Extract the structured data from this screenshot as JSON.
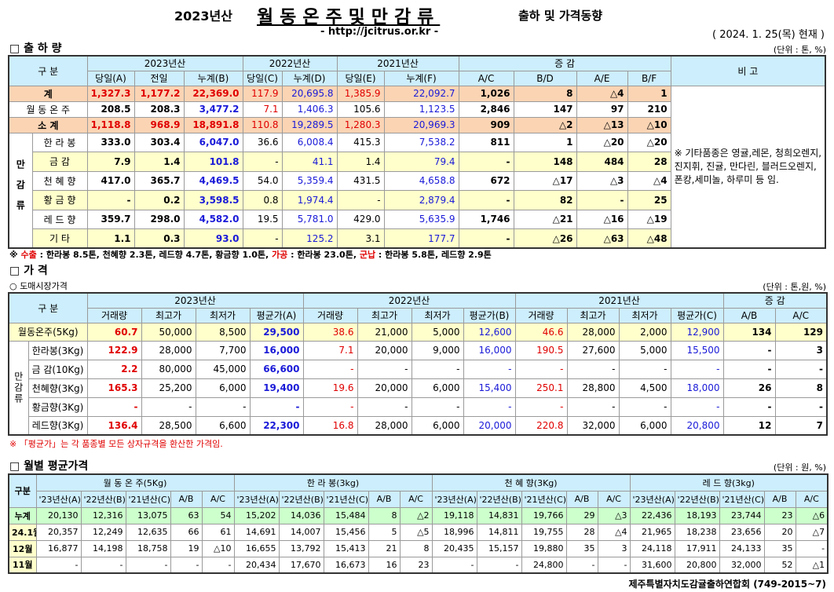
{
  "header": {
    "year": "2023년산",
    "title": "월동온주및만감류",
    "subtitle": "출하 및 가격동향",
    "url": "- http://jcitrus.or.kr -",
    "date": "( 2024.  1. 25(목) 현재 )"
  },
  "shipment": {
    "title": "□ 출 하 량",
    "unit": "(단위 : 톤, %)",
    "header": {
      "label": "구   분",
      "groups": [
        "2023년산",
        "2022년산",
        "2021년산",
        "증      감"
      ],
      "remark": "비 고",
      "columns": [
        "당일(A)",
        "전일",
        "누계(B)",
        "당일(C)",
        "누계(D)",
        "당일(E)",
        "누계(F)",
        "A/C",
        "B/D",
        "A/E",
        "B/F"
      ]
    },
    "rows": [
      {
        "label": "계",
        "values": [
          "1,327.3",
          "1,177.2",
          "22,369.0",
          "117.9",
          "20,695.8",
          "1,385.9",
          "22,092.7",
          "1,026",
          "8",
          "△4",
          "1"
        ]
      },
      {
        "label": "월 동 온 주",
        "values": [
          "208.5",
          "208.3",
          "3,477.2",
          "7.1",
          "1,406.3",
          "105.6",
          "1,123.5",
          "2,846",
          "147",
          "97",
          "210"
        ]
      },
      {
        "label": "소   계",
        "values": [
          "1,118.8",
          "968.9",
          "18,891.8",
          "110.8",
          "19,289.5",
          "1,280.3",
          "20,969.3",
          "909",
          "△2",
          "△13",
          "△10"
        ]
      }
    ],
    "group": {
      "label": "만감류",
      "rows": [
        {
          "label": "한 라 봉",
          "values": [
            "333.0",
            "303.4",
            "6,047.0",
            "36.6",
            "6,008.4",
            "415.3",
            "7,538.2",
            "811",
            "1",
            "△20",
            "△20"
          ]
        },
        {
          "label": "금   감",
          "values": [
            "7.9",
            "1.4",
            "101.8",
            "-",
            "41.1",
            "1.4",
            "79.4",
            "-",
            "148",
            "484",
            "28"
          ]
        },
        {
          "label": "천 혜 향",
          "values": [
            "417.0",
            "365.7",
            "4,469.5",
            "54.0",
            "5,359.4",
            "431.5",
            "4,658.8",
            "672",
            "△17",
            "△3",
            "△4"
          ]
        },
        {
          "label": "황 금 향",
          "values": [
            "-",
            "0.2",
            "3,598.5",
            "0.8",
            "1,974.4",
            "-",
            "2,879.4",
            "-",
            "82",
            "-",
            "25"
          ]
        },
        {
          "label": "레 드 향",
          "values": [
            "359.7",
            "298.0",
            "4,582.0",
            "19.5",
            "5,781.0",
            "429.0",
            "5,635.9",
            "1,746",
            "△21",
            "△16",
            "△19"
          ]
        },
        {
          "label": "기   타",
          "values": [
            "1.1",
            "0.3",
            "93.0",
            "-",
            "125.2",
            "3.1",
            "177.7",
            "-",
            "△26",
            "△63",
            "△48"
          ]
        }
      ]
    },
    "remark": "※ 기타품종은 영귤,레몬, 청희오렌지, 진지휘, 진귤, 만다린, 블러드오렌지, 폰캉,세미놀, 하루미 등 임.",
    "footnote": [
      "※ ",
      "수출",
      " : 한라봉 8.5톤, 천혜향 2.3톤, 레드향 4.7톤, 황금향 1.0톤, ",
      "가공",
      " : 한라봉 23.0톤, ",
      "군납",
      " : 한라봉 5.8톤, 레드향 2.9톤"
    ]
  },
  "price": {
    "title": "□ 가       격",
    "subtitle": "○ 도매시장가격",
    "unit": "(단위 : 톤,원, %)",
    "header": {
      "label": "구   분",
      "groups": [
        "2023년산",
        "2022년산",
        "2021년산",
        "증    감"
      ],
      "columns": [
        "거래량",
        "최고가",
        "최저가",
        "평균가(A)",
        "거래량",
        "최고가",
        "최저가",
        "평균가(B)",
        "거래량",
        "최고가",
        "최저가",
        "평균가(C)",
        "A/B",
        "A/C"
      ]
    },
    "rows": [
      {
        "label": "월동온주(5Kg)",
        "values": [
          "60.7",
          "50,000",
          "8,500",
          "29,500",
          "38.6",
          "21,000",
          "5,000",
          "12,600",
          "46.6",
          "28,000",
          "2,000",
          "12,900",
          "134",
          "129"
        ]
      }
    ],
    "group": {
      "label": "만감류",
      "rows": [
        {
          "label": "한라봉(3Kg)",
          "values": [
            "122.9",
            "28,000",
            "7,700",
            "16,000",
            "7.1",
            "20,000",
            "9,000",
            "16,000",
            "190.5",
            "27,600",
            "5,000",
            "15,500",
            "-",
            "3"
          ]
        },
        {
          "label": "금 감(10Kg)",
          "values": [
            "2.2",
            "80,000",
            "45,000",
            "66,600",
            "-",
            "-",
            "-",
            "-",
            "-",
            "-",
            "-",
            "-",
            "-",
            "-"
          ]
        },
        {
          "label": "천혜향(3Kg)",
          "values": [
            "165.3",
            "25,200",
            "6,000",
            "19,400",
            "19.6",
            "20,000",
            "6,000",
            "15,400",
            "250.1",
            "28,800",
            "4,500",
            "18,000",
            "26",
            "8"
          ]
        },
        {
          "label": "황금향(3Kg)",
          "values": [
            "-",
            "-",
            "-",
            "-",
            "-",
            "-",
            "-",
            "-",
            "-",
            "-",
            "-",
            "-",
            "-",
            "-"
          ]
        },
        {
          "label": "레드향(3Kg)",
          "values": [
            "136.4",
            "28,500",
            "6,600",
            "22,300",
            "16.8",
            "28,000",
            "6,000",
            "20,000",
            "220.8",
            "32,000",
            "6,000",
            "20,800",
            "12",
            "7"
          ]
        }
      ]
    },
    "note": "※ 「평균가」는 각 품종별 모든 상자규격을 환산한 가격임."
  },
  "monthly": {
    "title": "□ 월별 평균가격",
    "unit": "(단위 : 원, %)",
    "header": {
      "label": "구분",
      "groups": [
        "월 동 온 주(5Kg)",
        "한 라 봉(3kg)",
        "천 혜 향(3Kg)",
        "레 드 향(3kg)"
      ],
      "columns": [
        "'23년산(A)",
        "'22년산(B)",
        "'21년산(C)",
        "A/B",
        "A/C"
      ]
    },
    "rows": [
      {
        "label": "누계",
        "values": [
          "20,130",
          "12,316",
          "13,075",
          "63",
          "54",
          "15,202",
          "14,036",
          "15,484",
          "8",
          "△2",
          "19,118",
          "14,831",
          "19,766",
          "29",
          "△3",
          "22,436",
          "18,193",
          "23,744",
          "23",
          "△6"
        ]
      },
      {
        "label": "24.1월",
        "values": [
          "20,357",
          "12,249",
          "12,635",
          "66",
          "61",
          "14,691",
          "14,007",
          "15,456",
          "5",
          "△5",
          "18,996",
          "14,811",
          "19,755",
          "28",
          "△4",
          "21,965",
          "18,238",
          "23,656",
          "20",
          "△7"
        ]
      },
      {
        "label": "12월",
        "values": [
          "16,877",
          "14,198",
          "18,758",
          "19",
          "△10",
          "16,655",
          "13,792",
          "15,413",
          "21",
          "8",
          "20,435",
          "15,157",
          "19,880",
          "35",
          "3",
          "24,118",
          "17,911",
          "24,133",
          "35",
          "-"
        ]
      },
      {
        "label": "11월",
        "values": [
          "-",
          "-",
          "-",
          "-",
          "-",
          "20,434",
          "17,670",
          "16,673",
          "16",
          "23",
          "-",
          "-",
          "24,800",
          "-",
          "-",
          "31,600",
          "20,800",
          "32,000",
          "52",
          "△1"
        ]
      }
    ]
  },
  "footer": "제주특별자치도감귤출하연합회 (749-2015~7)"
}
